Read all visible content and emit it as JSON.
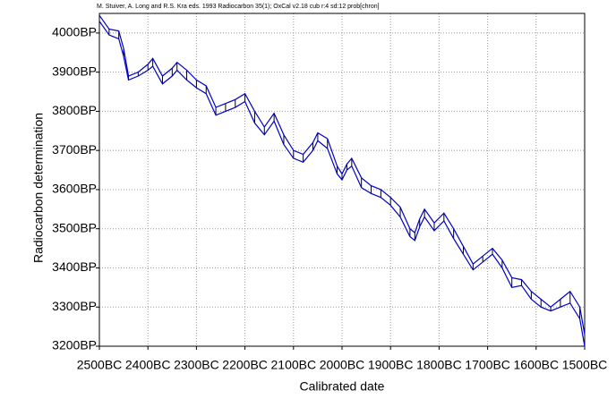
{
  "chart_data": {
    "type": "line",
    "title": "M. Stuiver, A. Long and R.S. Kra eds. 1993 Radiocarbon 35(1); OxCal v2.18 cub r:4 sd:12 prob[chron]",
    "xlabel": "Calibrated date",
    "ylabel": "Radiocarbon determination",
    "x": [
      -2500,
      -2480,
      -2460,
      -2450,
      -2440,
      -2420,
      -2400,
      -2390,
      -2370,
      -2350,
      -2340,
      -2320,
      -2300,
      -2280,
      -2260,
      -2240,
      -2220,
      -2200,
      -2180,
      -2160,
      -2140,
      -2120,
      -2100,
      -2080,
      -2060,
      -2050,
      -2030,
      -2010,
      -2000,
      -1990,
      -1980,
      -1960,
      -1940,
      -1920,
      -1900,
      -1880,
      -1860,
      -1850,
      -1840,
      -1830,
      -1810,
      -1790,
      -1770,
      -1750,
      -1730,
      -1710,
      -1690,
      -1670,
      -1650,
      -1630,
      -1610,
      -1590,
      -1570,
      -1550,
      -1530,
      -1510,
      -1500
    ],
    "series": [
      {
        "name": "upper",
        "color": "#0000cc",
        "values": [
          4045,
          4010,
          4005,
          3960,
          3890,
          3900,
          3920,
          3935,
          3890,
          3910,
          3925,
          3905,
          3880,
          3865,
          3810,
          3820,
          3830,
          3845,
          3800,
          3760,
          3795,
          3740,
          3700,
          3690,
          3720,
          3745,
          3730,
          3660,
          3640,
          3665,
          3680,
          3630,
          3610,
          3600,
          3580,
          3555,
          3500,
          3490,
          3525,
          3550,
          3515,
          3540,
          3500,
          3455,
          3410,
          3430,
          3450,
          3420,
          3375,
          3370,
          3340,
          3320,
          3300,
          3320,
          3340,
          3300,
          3230
        ]
      },
      {
        "name": "lower",
        "color": "#0000cc",
        "values": [
          4030,
          3995,
          3985,
          3940,
          3880,
          3890,
          3905,
          3915,
          3870,
          3890,
          3905,
          3880,
          3860,
          3845,
          3790,
          3800,
          3810,
          3825,
          3770,
          3740,
          3775,
          3715,
          3680,
          3670,
          3700,
          3725,
          3705,
          3640,
          3625,
          3650,
          3660,
          3605,
          3590,
          3580,
          3560,
          3530,
          3480,
          3470,
          3505,
          3530,
          3495,
          3520,
          3475,
          3435,
          3395,
          3415,
          3435,
          3400,
          3350,
          3355,
          3320,
          3300,
          3290,
          3300,
          3310,
          3270,
          3200
        ]
      }
    ],
    "hatch_color": "#000000",
    "xlim": [
      -2500,
      -1500
    ],
    "ylim": [
      3200,
      4050
    ],
    "xticks": [
      {
        "value": -2500,
        "label": "2500BC"
      },
      {
        "value": -2400,
        "label": "2400BC"
      },
      {
        "value": -2300,
        "label": "2300BC"
      },
      {
        "value": -2200,
        "label": "2200BC"
      },
      {
        "value": -2100,
        "label": "2100BC"
      },
      {
        "value": -2000,
        "label": "2000BC"
      },
      {
        "value": -1900,
        "label": "1900BC"
      },
      {
        "value": -1800,
        "label": "1800BC"
      },
      {
        "value": -1700,
        "label": "1700BC"
      },
      {
        "value": -1600,
        "label": "1600BC"
      },
      {
        "value": -1500,
        "label": "1500BC"
      }
    ],
    "yticks": [
      {
        "value": 3200,
        "label": "3200BP"
      },
      {
        "value": 3300,
        "label": "3300BP"
      },
      {
        "value": 3400,
        "label": "3400BP"
      },
      {
        "value": 3500,
        "label": "3500BP"
      },
      {
        "value": 3600,
        "label": "3600BP"
      },
      {
        "value": 3700,
        "label": "3700BP"
      },
      {
        "value": 3800,
        "label": "3800BP"
      },
      {
        "value": 3900,
        "label": "3900BP"
      },
      {
        "value": 4000,
        "label": "4000BP"
      }
    ],
    "grid": true
  }
}
